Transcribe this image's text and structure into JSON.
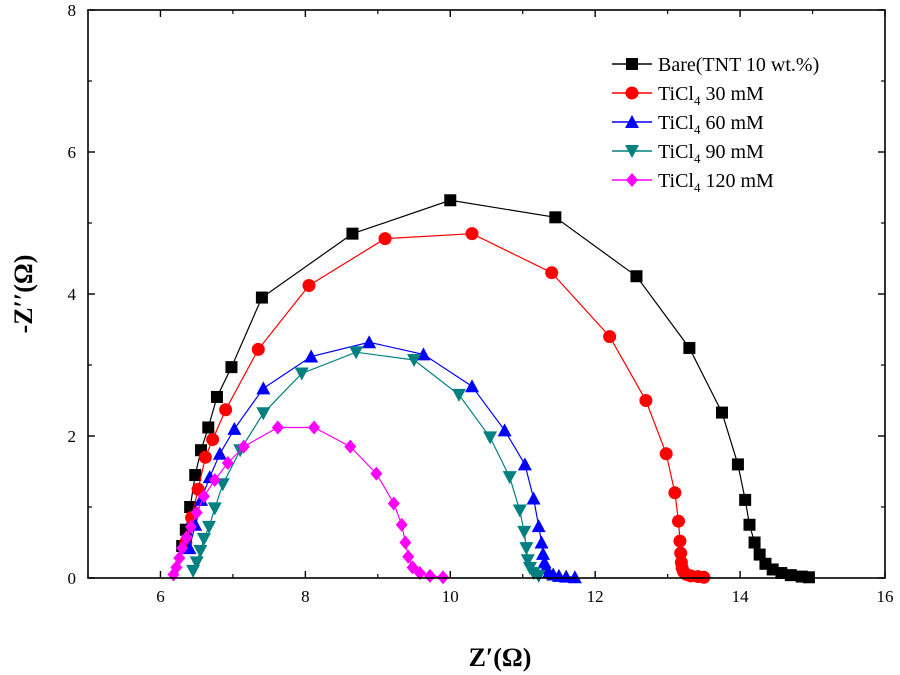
{
  "chart_data": {
    "type": "scatter",
    "xlabel": "Z′(Ω)",
    "ylabel": "-Z′′(Ω)",
    "xlim": [
      5,
      16
    ],
    "ylim": [
      0,
      8
    ],
    "xticks": [
      "6",
      "8",
      "10",
      "12",
      "14",
      "16"
    ],
    "yticks": [
      "0",
      "2",
      "4",
      "6",
      "8"
    ],
    "legend_position": "top-right",
    "series": [
      {
        "name": "Bare(TNT 10 wt.%)",
        "name_parts": {
          "main": "Bare(TNT 10 wt.%)"
        },
        "color": "#000000",
        "marker": "square",
        "x": [
          6.3,
          6.35,
          6.41,
          6.48,
          6.56,
          6.66,
          6.78,
          6.98,
          7.4,
          8.65,
          10.0,
          11.45,
          12.57,
          13.3,
          13.75,
          13.97,
          14.07,
          14.13,
          14.2,
          14.27,
          14.35,
          14.45,
          14.57,
          14.7,
          14.85,
          14.95
        ],
        "y": [
          0.45,
          0.68,
          1.0,
          1.45,
          1.8,
          2.12,
          2.55,
          2.97,
          3.95,
          4.85,
          5.32,
          5.08,
          4.25,
          3.24,
          2.33,
          1.6,
          1.1,
          0.75,
          0.5,
          0.33,
          0.2,
          0.12,
          0.07,
          0.04,
          0.02,
          0.01
        ]
      },
      {
        "name": "TiCl4 30 mM",
        "name_parts": {
          "main": "TiCl",
          "sub": "4",
          "rest": " 30 mM"
        },
        "color": "#ff0000",
        "marker": "circle",
        "x": [
          6.35,
          6.43,
          6.52,
          6.62,
          6.72,
          6.9,
          7.35,
          8.05,
          9.1,
          10.3,
          11.4,
          12.2,
          12.7,
          12.98,
          13.1,
          13.15,
          13.17,
          13.18,
          13.19,
          13.2,
          13.22,
          13.26,
          13.32,
          13.42,
          13.5
        ],
        "y": [
          0.5,
          0.85,
          1.25,
          1.7,
          1.95,
          2.37,
          3.22,
          4.12,
          4.78,
          4.85,
          4.3,
          3.4,
          2.5,
          1.75,
          1.2,
          0.8,
          0.52,
          0.35,
          0.22,
          0.14,
          0.09,
          0.05,
          0.03,
          0.02,
          0.01
        ]
      },
      {
        "name": "TiCl4 60 mM",
        "name_parts": {
          "main": "TiCl",
          "sub": "4",
          "rest": " 60 mM"
        },
        "color": "#0000ff",
        "marker": "triangle-up",
        "x": [
          6.4,
          6.48,
          6.56,
          6.68,
          6.82,
          7.02,
          7.42,
          8.08,
          8.88,
          9.63,
          10.3,
          10.75,
          11.03,
          11.15,
          11.22,
          11.26,
          11.28,
          11.3,
          11.32,
          11.36,
          11.42,
          11.5,
          11.6,
          11.72
        ],
        "y": [
          0.42,
          0.75,
          1.1,
          1.42,
          1.75,
          2.1,
          2.67,
          3.12,
          3.32,
          3.15,
          2.7,
          2.08,
          1.6,
          1.12,
          0.73,
          0.5,
          0.34,
          0.22,
          0.14,
          0.08,
          0.05,
          0.03,
          0.02,
          0.01
        ]
      },
      {
        "name": "TiCl4 90 mM",
        "name_parts": {
          "main": "TiCl",
          "sub": "4",
          "rest": " 90 mM"
        },
        "color": "#008080",
        "marker": "triangle-down",
        "x": [
          6.45,
          6.5,
          6.55,
          6.6,
          6.67,
          6.75,
          6.86,
          7.1,
          7.42,
          7.95,
          8.7,
          9.5,
          10.12,
          10.55,
          10.82,
          10.96,
          11.02,
          11.05,
          11.07,
          11.1,
          11.15,
          11.22
        ],
        "y": [
          0.1,
          0.22,
          0.38,
          0.55,
          0.72,
          0.98,
          1.32,
          1.8,
          2.32,
          2.88,
          3.18,
          3.07,
          2.58,
          1.98,
          1.42,
          0.95,
          0.65,
          0.42,
          0.25,
          0.14,
          0.07,
          0.03
        ]
      },
      {
        "name": "TiCl4 120 mM",
        "name_parts": {
          "main": "TiCl",
          "sub": "4",
          "rest": " 120 mM"
        },
        "color": "#ff00ff",
        "marker": "diamond",
        "x": [
          6.18,
          6.22,
          6.26,
          6.3,
          6.36,
          6.42,
          6.5,
          6.6,
          6.75,
          6.93,
          7.15,
          7.62,
          8.12,
          8.62,
          8.98,
          9.22,
          9.33,
          9.38,
          9.42,
          9.48,
          9.58,
          9.72,
          9.9
        ],
        "y": [
          0.05,
          0.15,
          0.28,
          0.42,
          0.57,
          0.72,
          0.92,
          1.15,
          1.38,
          1.62,
          1.85,
          2.12,
          2.12,
          1.85,
          1.47,
          1.05,
          0.75,
          0.5,
          0.3,
          0.15,
          0.07,
          0.03,
          0.01
        ]
      }
    ]
  }
}
